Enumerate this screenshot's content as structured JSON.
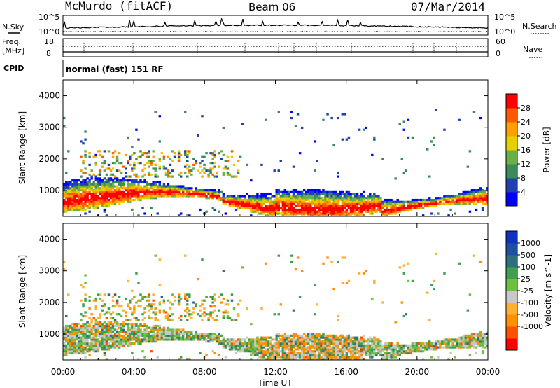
{
  "header": {
    "station": "McMurdo (fitACF)",
    "beam": "Beam 06",
    "date": "07/Mar/2014"
  },
  "noise_strip": {
    "left_label": "N.Sky",
    "right_label": "N.Search",
    "left_ticks": [
      "10^5",
      "10^0"
    ],
    "right_ticks": [
      "10^5",
      "10^0"
    ]
  },
  "freq_strip": {
    "left_label_1": "Freq.",
    "left_label_2": "[MHz]",
    "left_ticks": [
      "18",
      "8"
    ],
    "right_label": "Nave",
    "right_ticks": [
      "60",
      "0"
    ]
  },
  "cpid": {
    "label": "CPID",
    "value": "normal (fast) 151 RF"
  },
  "colors": {
    "power_scale": [
      "#0000ff",
      "#2040b0",
      "#3a8a5a",
      "#6ab04a",
      "#e8d000",
      "#ffa000",
      "#ff5a00",
      "#ff0000"
    ],
    "velocity_scale": [
      "#ff0000",
      "#ff5000",
      "#ff9000",
      "#ffb030",
      "#c8c8c8",
      "#70c040",
      "#3f9f4f",
      "#2e6f7f",
      "#1f4fa0",
      "#1030c0"
    ]
  },
  "chart_data": [
    {
      "type": "heatmap",
      "title": "Power",
      "xlabel": "",
      "ylabel": "Slant Range [km]",
      "x_ticks": [
        "00:00",
        "04:00",
        "08:00",
        "12:00",
        "16:00",
        "20:00",
        "00:00"
      ],
      "y_ticks": [
        1000,
        2000,
        3000,
        4000
      ],
      "ylim": [
        180,
        4500
      ],
      "colorbar_label": "Power [dB]",
      "colorbar_ticks": [
        4,
        8,
        12,
        16,
        20,
        24,
        28
      ],
      "colorbar_range": [
        0,
        32
      ]
    },
    {
      "type": "heatmap",
      "title": "Velocity",
      "xlabel": "Time UT",
      "ylabel": "Slant Range [km]",
      "x_ticks": [
        "00:00",
        "04:00",
        "08:00",
        "12:00",
        "16:00",
        "20:00",
        "00:00"
      ],
      "y_ticks": [
        1000,
        2000,
        3000,
        4000
      ],
      "ylim": [
        180,
        4500
      ],
      "colorbar_label": "Velocity [m s^-1]",
      "colorbar_ticks": [
        "1000",
        "500",
        "100",
        "25",
        "-25",
        "-100",
        "-500",
        "-1000"
      ]
    }
  ]
}
